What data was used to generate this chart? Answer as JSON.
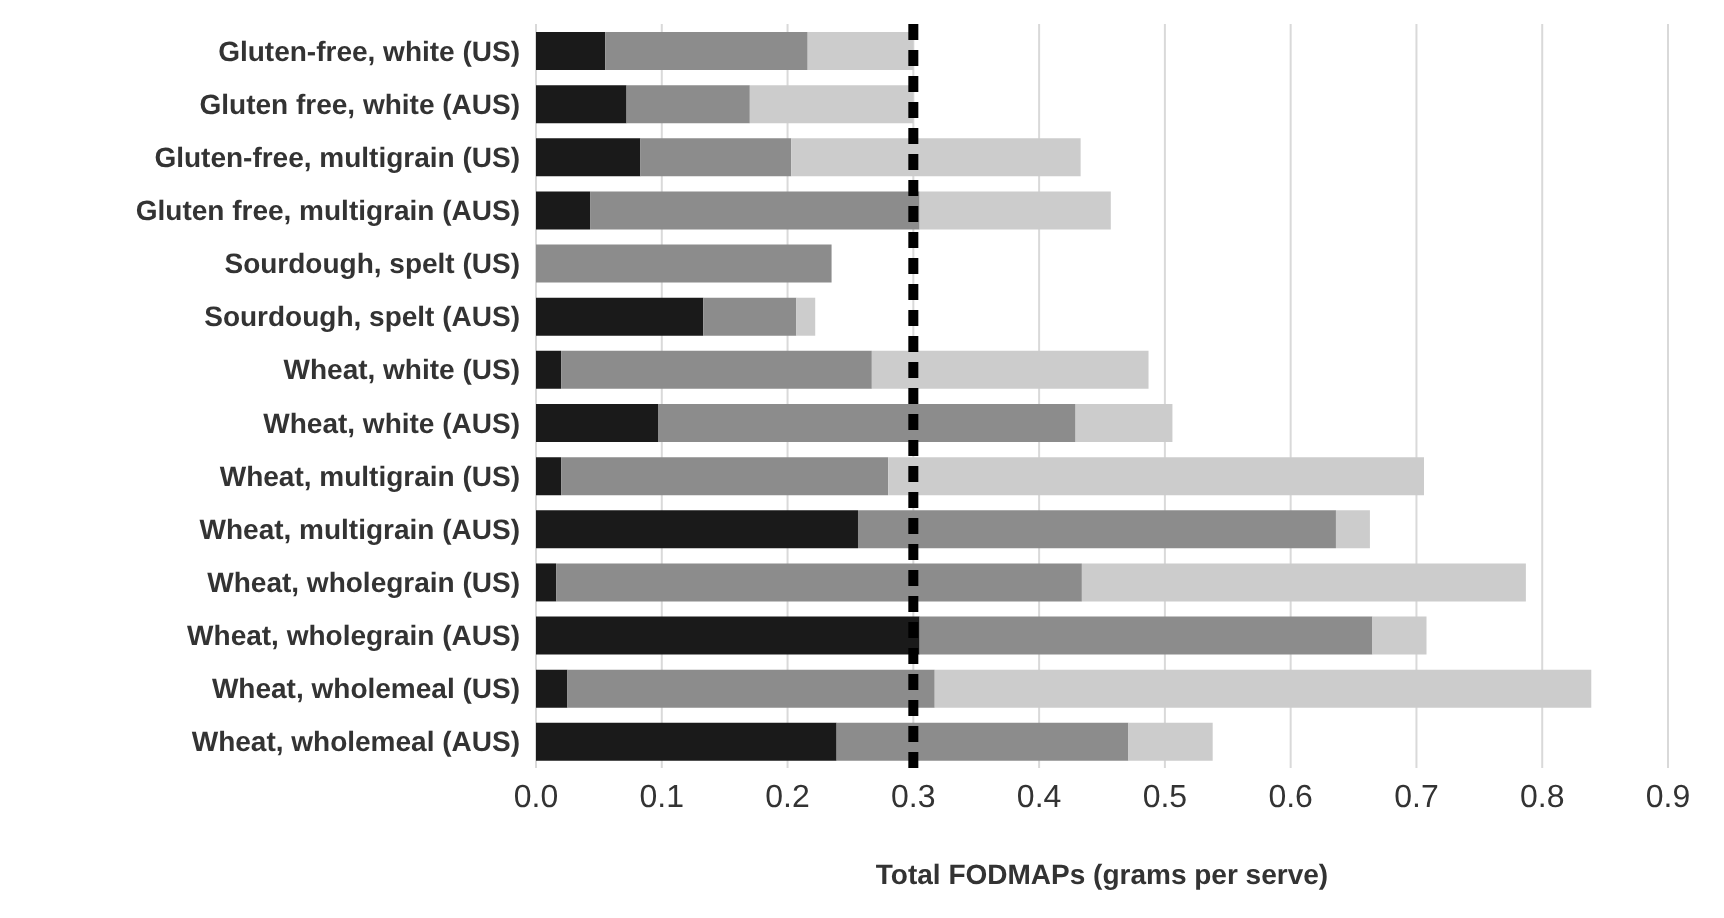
{
  "chart_data": {
    "type": "bar",
    "orientation": "horizontal",
    "stacked": true,
    "xlabel": "Total FODMAPs (grams per serve)",
    "categories": [
      "Gluten-free, white (US)",
      "Gluten free, white (AUS)",
      "Gluten-free, multigrain (US)",
      "Gluten free, multigrain (AUS)",
      "Sourdough, spelt (US)",
      "Sourdough, spelt (AUS)",
      "Wheat, white (US)",
      "Wheat, white (AUS)",
      "Wheat, multigrain (US)",
      "Wheat, multigrain (AUS)",
      "Wheat, wholegrain (US)",
      "Wheat, wholegrain (AUS)",
      "Wheat, wholemeal (US)",
      "Wheat, wholemeal (AUS)"
    ],
    "series": [
      {
        "color": "#1a1a1a",
        "values": [
          0.055,
          0.072,
          0.083,
          0.043,
          0,
          0.133,
          0.02,
          0.097,
          0.02,
          0.256,
          0.016,
          0.305,
          0.025,
          0.239
        ]
      },
      {
        "color": "#8c8c8c",
        "values": [
          0.161,
          0.098,
          0.12,
          0.262,
          0.235,
          0.074,
          0.247,
          0.332,
          0.26,
          0.38,
          0.418,
          0.36,
          0.292,
          0.232
        ]
      },
      {
        "color": "#cccccc",
        "values": [
          0.084,
          0.13,
          0.23,
          0.152,
          0,
          0.015,
          0.22,
          0.077,
          0.426,
          0.027,
          0.353,
          0.043,
          0.522,
          0.067
        ]
      }
    ],
    "xlim": [
      0,
      0.9
    ],
    "xticks": [
      {
        "value": 0,
        "label": "0.0"
      },
      {
        "value": 0.1,
        "label": "0.1"
      },
      {
        "value": 0.2,
        "label": "0.2"
      },
      {
        "value": 0.3,
        "label": "0.3"
      },
      {
        "value": 0.4,
        "label": "0.4"
      },
      {
        "value": 0.5,
        "label": "0.5"
      },
      {
        "value": 0.6,
        "label": "0.6"
      },
      {
        "value": 0.7,
        "label": "0.7"
      },
      {
        "value": 0.8,
        "label": "0.8"
      },
      {
        "value": 0.9,
        "label": "0.9"
      }
    ],
    "grid": "x",
    "legend": false,
    "ref_lines": [
      {
        "axis": "x",
        "value": 0.3,
        "color": "#000000",
        "line_style": "dashed"
      }
    ]
  }
}
